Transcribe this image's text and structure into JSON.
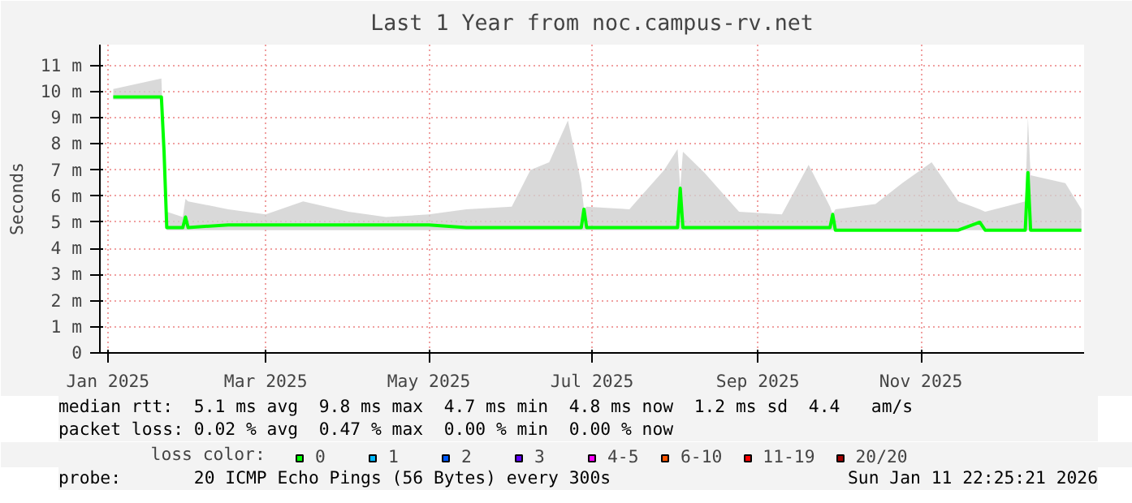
{
  "chart_data": {
    "type": "line",
    "title": "Last 1 Year from noc.campus-rv.net",
    "ylabel": "Seconds",
    "x": [
      "2025-01-03",
      "2025-01-12",
      "2025-01-21",
      "2025-01-22",
      "2025-01-23",
      "2025-01-29",
      "2025-01-30",
      "2025-01-31",
      "2025-02-15",
      "2025-03-01",
      "2025-03-15",
      "2025-04-01",
      "2025-04-15",
      "2025-05-01",
      "2025-05-15",
      "2025-06-01",
      "2025-06-08",
      "2025-06-15",
      "2025-06-22",
      "2025-06-27",
      "2025-06-28",
      "2025-06-29",
      "2025-07-15",
      "2025-07-28",
      "2025-08-02",
      "2025-08-03",
      "2025-08-04",
      "2025-08-12",
      "2025-08-25",
      "2025-09-10",
      "2025-09-20",
      "2025-09-28",
      "2025-09-29",
      "2025-09-30",
      "2025-10-15",
      "2025-10-25",
      "2025-11-05",
      "2025-11-15",
      "2025-11-23",
      "2025-11-25",
      "2025-12-10",
      "2025-12-11",
      "2025-12-12",
      "2025-12-25",
      "2025-12-31"
    ],
    "series": [
      {
        "name": "0",
        "color": "#00ff00",
        "values": [
          9.8,
          9.8,
          9.8,
          7.7,
          4.8,
          4.8,
          5.2,
          4.8,
          4.9,
          4.9,
          4.9,
          4.9,
          4.9,
          4.9,
          4.8,
          4.8,
          4.8,
          4.8,
          4.8,
          4.8,
          5.5,
          4.8,
          4.8,
          4.8,
          4.8,
          6.3,
          4.8,
          4.8,
          4.8,
          4.8,
          4.8,
          4.8,
          5.3,
          4.7,
          4.7,
          4.7,
          4.7,
          4.7,
          5.0,
          4.7,
          4.7,
          6.9,
          4.7,
          4.7,
          4.7
        ],
        "lower": [
          9.7,
          9.7,
          9.7,
          7.7,
          4.7,
          4.7,
          4.7,
          4.7,
          4.7,
          4.7,
          4.7,
          4.7,
          4.7,
          4.7,
          4.7,
          4.7,
          4.7,
          4.7,
          4.7,
          4.7,
          4.7,
          4.7,
          4.7,
          4.7,
          4.7,
          4.7,
          4.7,
          4.7,
          4.7,
          4.7,
          4.7,
          4.7,
          4.7,
          4.7,
          4.7,
          4.7,
          4.7,
          4.7,
          4.7,
          4.7,
          4.7,
          4.7,
          4.7,
          4.7,
          4.7
        ],
        "upper": [
          10.1,
          10.3,
          10.5,
          7.7,
          5.4,
          5.2,
          5.9,
          5.8,
          5.5,
          5.3,
          5.8,
          5.4,
          5.2,
          5.3,
          5.5,
          5.6,
          7.0,
          7.3,
          8.9,
          6.5,
          5.5,
          5.6,
          5.5,
          7.0,
          7.8,
          6.3,
          7.7,
          6.9,
          5.4,
          5.3,
          7.2,
          5.6,
          5.3,
          5.5,
          5.7,
          6.5,
          7.3,
          5.8,
          5.5,
          5.4,
          5.8,
          9.0,
          6.8,
          6.5,
          5.5
        ]
      },
      {
        "name": "1",
        "color": "#00b8ff",
        "values": [
          null,
          null,
          null,
          null,
          null,
          null,
          null,
          null,
          null,
          null,
          null,
          null,
          null,
          null,
          null,
          null,
          null,
          null,
          null,
          null,
          null,
          null,
          null,
          null,
          null,
          null,
          null,
          null,
          null,
          null,
          null,
          null,
          null,
          null,
          null,
          null,
          null,
          null,
          null,
          null,
          null,
          null,
          null,
          null,
          null
        ]
      },
      {
        "name": "2",
        "color": "#0059ff",
        "values": [
          null,
          null,
          null,
          null,
          null,
          null,
          null,
          null,
          null,
          null,
          null,
          null,
          null,
          null,
          null,
          null,
          null,
          null,
          null,
          null,
          null,
          null,
          null,
          null,
          null,
          null,
          null,
          null,
          null,
          null,
          null,
          null,
          null,
          null,
          null,
          null,
          null,
          null,
          null,
          null,
          null,
          null,
          null,
          null,
          null
        ]
      },
      {
        "name": "3",
        "color": "#5e00ff",
        "values": [
          null,
          null,
          null,
          null,
          null,
          null,
          null,
          null,
          null,
          null,
          null,
          null,
          null,
          null,
          null,
          null,
          null,
          null,
          null,
          null,
          null,
          null,
          null,
          null,
          null,
          null,
          null,
          null,
          null,
          null,
          null,
          null,
          null,
          null,
          null,
          null,
          null,
          null,
          null,
          null,
          null,
          null,
          null,
          null,
          null
        ]
      },
      {
        "name": "4-5",
        "color": "#ff00ff",
        "values": [
          null,
          null,
          null,
          null,
          null,
          null,
          null,
          null,
          null,
          null,
          null,
          null,
          null,
          null,
          null,
          null,
          null,
          null,
          null,
          null,
          null,
          null,
          null,
          null,
          null,
          null,
          null,
          null,
          null,
          null,
          null,
          null,
          null,
          null,
          null,
          null,
          null,
          null,
          null,
          null,
          null,
          null,
          null,
          null,
          null
        ]
      },
      {
        "name": "6-10",
        "color": "#ff5500",
        "values": [
          null,
          null,
          null,
          null,
          null,
          null,
          null,
          null,
          null,
          null,
          null,
          null,
          null,
          null,
          null,
          null,
          null,
          null,
          null,
          null,
          null,
          null,
          null,
          null,
          null,
          null,
          null,
          null,
          null,
          null,
          null,
          null,
          null,
          null,
          null,
          null,
          null,
          null,
          null,
          null,
          null,
          null,
          null,
          null,
          null
        ]
      },
      {
        "name": "11-19",
        "color": "#ff0000",
        "values": [
          null,
          null,
          null,
          null,
          null,
          null,
          null,
          null,
          null,
          null,
          null,
          null,
          null,
          null,
          null,
          null,
          null,
          null,
          null,
          null,
          null,
          null,
          null,
          null,
          null,
          null,
          null,
          null,
          null,
          null,
          null,
          null,
          null,
          null,
          null,
          null,
          null,
          null,
          null,
          null,
          null,
          null,
          null,
          null,
          null
        ]
      },
      {
        "name": "20/20",
        "color": "#a10000",
        "values": [
          null,
          null,
          null,
          null,
          null,
          null,
          null,
          null,
          null,
          null,
          null,
          null,
          null,
          null,
          null,
          null,
          null,
          null,
          null,
          null,
          null,
          null,
          null,
          null,
          null,
          null,
          null,
          null,
          null,
          null,
          null,
          null,
          null,
          null,
          null,
          null,
          null,
          null,
          null,
          null,
          null,
          null,
          null,
          null,
          null
        ]
      }
    ],
    "legend_title": "loss color:",
    "legend": "bottom",
    "xlim": [
      "2024-12-29",
      "2026-01-01"
    ],
    "xticks": [
      {
        "value": "2025-01-01",
        "label": "Jan 2025"
      },
      {
        "value": "2025-03-01",
        "label": "Mar 2025"
      },
      {
        "value": "2025-05-01",
        "label": "May 2025"
      },
      {
        "value": "2025-07-01",
        "label": "Jul 2025"
      },
      {
        "value": "2025-09-01",
        "label": "Sep 2025"
      },
      {
        "value": "2025-11-01",
        "label": "Nov 2025"
      }
    ],
    "ylim": [
      0,
      11.8
    ],
    "yticks": [
      {
        "value": 0,
        "label": "0"
      },
      {
        "value": 1,
        "label": "1 m"
      },
      {
        "value": 2,
        "label": "2 m"
      },
      {
        "value": 3,
        "label": "3 m"
      },
      {
        "value": 4,
        "label": "4 m"
      },
      {
        "value": 5,
        "label": "5 m"
      },
      {
        "value": 6,
        "label": "6 m"
      },
      {
        "value": 7,
        "label": "7 m"
      },
      {
        "value": 8,
        "label": "8 m"
      },
      {
        "value": 9,
        "label": "9 m"
      },
      {
        "value": 10,
        "label": "10 m"
      },
      {
        "value": 11,
        "label": "11 m"
      }
    ],
    "grid": true,
    "annotations": [
      "median rtt:  5.1 ms avg  9.8 ms max  4.7 ms min  4.8 ms now  1.2 ms sd  4.4   am/s",
      "packet loss: 0.02 % avg  0.47 % max  0.00 % min  0.00 % now",
      "probe:       20 ICMP Echo Pings (56 Bytes) every 300s",
      "Sun Jan 11 22:25:21 2026"
    ]
  }
}
